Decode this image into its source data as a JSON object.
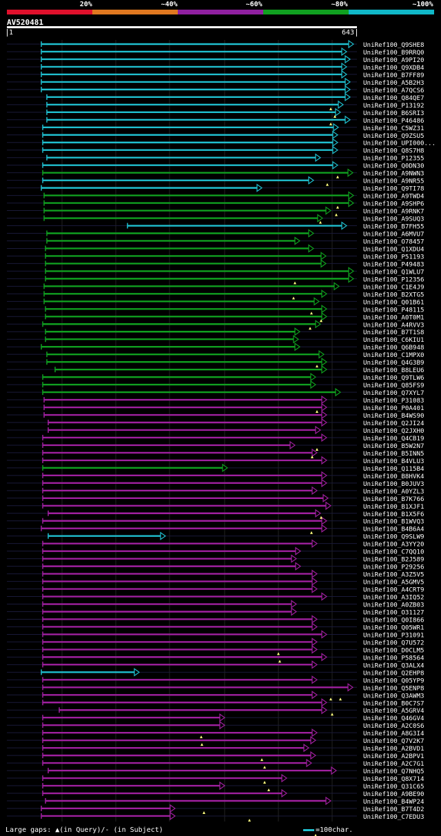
{
  "query": {
    "id": "AV520481",
    "start": "1",
    "end": "643"
  },
  "legend": {
    "labels": [
      "20%",
      "~40%",
      "~60%",
      "~80%",
      "~100%"
    ],
    "colors": [
      "#e0102c",
      "#e07820",
      "#9020a0",
      "#10a020",
      "#10b8c8"
    ]
  },
  "footer": {
    "left": "Large gaps: ▲(in Query)/- (in Subject)",
    "right": "=100char."
  },
  "hits": [
    [
      "UniRef100_Q9SHE8",
      "C",
      60,
      513
    ],
    [
      "UniRef100_B9RRQ0",
      "C",
      60,
      503
    ],
    [
      "UniRef100_A9PI20",
      "C",
      60,
      508
    ],
    [
      "UniRef100_Q9XDB4",
      "C",
      60,
      503
    ],
    [
      "UniRef100_B7FF89",
      "C",
      60,
      503
    ],
    [
      "UniRef100_A5B2H3",
      "C",
      60,
      508
    ],
    [
      "UniRef100_A7QCS6",
      "C",
      60,
      508
    ],
    [
      "UniRef100_Q84QE7",
      "C",
      68,
      508
    ],
    [
      "UniRef100_P13192",
      "C",
      68,
      498
    ],
    [
      "UniRef100_B6SRI3",
      "C",
      68,
      494
    ],
    [
      "UniRef100_P46486",
      "C",
      68,
      508
    ],
    [
      "UniRef100_C5WZ31",
      "C",
      62,
      491
    ],
    [
      "UniRef100_Q9ZSU5",
      "C",
      62,
      490
    ],
    [
      "UniRef100_UPI000...",
      "C",
      62,
      490
    ],
    [
      "UniRef100_Q8S7H8",
      "C",
      62,
      490
    ],
    [
      "UniRef100_P12355",
      "C",
      68,
      465
    ],
    [
      "UniRef100_Q0DN30",
      "C",
      62,
      490
    ],
    [
      "UniRef100_A9NWN3",
      "G",
      62,
      512
    ],
    [
      "UniRef100_A9NR55",
      "C",
      62,
      455
    ],
    [
      "UniRef100_Q9TI78",
      "C",
      60,
      380
    ],
    [
      "UniRef100_A9TWD4",
      "G",
      64,
      513
    ],
    [
      "UniRef100_A9SHP6",
      "G",
      64,
      513
    ],
    [
      "UniRef100_A9RNK7",
      "G",
      64,
      480
    ],
    [
      "UniRef100_A9SUQ3",
      "G",
      64,
      468
    ],
    [
      "UniRef100_B7FH55",
      "C",
      185,
      503
    ],
    [
      "UniRef100_A6MVU7",
      "G",
      68,
      455
    ],
    [
      "UniRef100_O78457",
      "G",
      68,
      435
    ],
    [
      "UniRef100_Q1XDU4",
      "G",
      66,
      455
    ],
    [
      "UniRef100_P51193",
      "G",
      66,
      473
    ],
    [
      "UniRef100_P49483",
      "G",
      66,
      473
    ],
    [
      "UniRef100_Q1WLU7",
      "G",
      66,
      513
    ],
    [
      "UniRef100_P12356",
      "G",
      66,
      513
    ],
    [
      "UniRef100_C1E4J9",
      "G",
      64,
      492
    ],
    [
      "UniRef100_B2XTG5",
      "G",
      64,
      474
    ],
    [
      "UniRef100_Q01B61",
      "G",
      64,
      463
    ],
    [
      "UniRef100_P48115",
      "G",
      66,
      474
    ],
    [
      "UniRef100_A0T0M1",
      "G",
      66,
      474
    ],
    [
      "UniRef100_A4RVV3",
      "G",
      62,
      465
    ],
    [
      "UniRef100_B7T1S8",
      "G",
      66,
      435
    ],
    [
      "UniRef100_C6KIU1",
      "G",
      66,
      433
    ],
    [
      "UniRef100_Q6B948",
      "G",
      60,
      435
    ],
    [
      "UniRef100_C1MPX0",
      "G",
      68,
      470
    ],
    [
      "UniRef100_Q4G3B9",
      "G",
      68,
      474
    ],
    [
      "UniRef100_B8LEU6",
      "G",
      80,
      474
    ],
    [
      "UniRef100_Q9TLW6",
      "G",
      62,
      458
    ],
    [
      "UniRef100_Q85FS9",
      "G",
      62,
      458
    ],
    [
      "UniRef100_Q7XYL7",
      "G",
      62,
      494
    ],
    [
      "UniRef100_P31083",
      "P",
      64,
      474
    ],
    [
      "UniRef100_P0A401",
      "P",
      64,
      474
    ],
    [
      "UniRef100_B4WS90",
      "P",
      64,
      474
    ],
    [
      "UniRef100_Q2JI24",
      "P",
      70,
      474
    ],
    [
      "UniRef100_Q2JXH0",
      "P",
      70,
      465
    ],
    [
      "UniRef100_Q4CB19",
      "P",
      62,
      474
    ],
    [
      "UniRef100_B5W2N7",
      "P",
      62,
      428
    ],
    [
      "UniRef100_B5INN5",
      "P",
      62,
      460
    ],
    [
      "UniRef100_B4VLU3",
      "P",
      62,
      474
    ],
    [
      "UniRef100_Q115B4",
      "G",
      62,
      330
    ],
    [
      "UniRef100_B8HVK4",
      "P",
      62,
      474
    ],
    [
      "UniRef100_B0JUV3",
      "P",
      62,
      474
    ],
    [
      "UniRef100_A0YZL3",
      "P",
      62,
      460
    ],
    [
      "UniRef100_B7K766",
      "P",
      62,
      476
    ],
    [
      "UniRef100_B1XJF1",
      "P",
      62,
      480
    ],
    [
      "UniRef100_B1X5F6",
      "P",
      70,
      465
    ],
    [
      "UniRef100_B1WVQ3",
      "P",
      62,
      474
    ],
    [
      "UniRef100_B4B6A4",
      "P",
      60,
      474
    ],
    [
      "UniRef100_Q9SLW9",
      "C",
      70,
      240
    ],
    [
      "UniRef100_A3YY20",
      "P",
      62,
      460
    ],
    [
      "UniRef100_C7QQ10",
      "P",
      62,
      436
    ],
    [
      "UniRef100_B2J589",
      "P",
      62,
      430
    ],
    [
      "UniRef100_P29256",
      "P",
      62,
      436
    ],
    [
      "UniRef100_A3Z5V5",
      "P",
      62,
      460
    ],
    [
      "UniRef100_A5GMV5",
      "P",
      62,
      460
    ],
    [
      "UniRef100_A4CRT9",
      "P",
      62,
      460
    ],
    [
      "UniRef100_A3IQ52",
      "P",
      62,
      474
    ],
    [
      "UniRef100_A0ZB03",
      "P",
      62,
      430
    ],
    [
      "UniRef100_O31127",
      "P",
      62,
      430
    ],
    [
      "UniRef100_Q0I866",
      "P",
      62,
      460
    ],
    [
      "UniRef100_Q05WR1",
      "P",
      62,
      460
    ],
    [
      "UniRef100_P31091",
      "P",
      62,
      474
    ],
    [
      "UniRef100_Q7U572",
      "P",
      62,
      460
    ],
    [
      "UniRef100_D0CLM5",
      "P",
      62,
      460
    ],
    [
      "UniRef100_P58564",
      "P",
      62,
      474
    ],
    [
      "UniRef100_Q3ALX4",
      "P",
      62,
      460
    ],
    [
      "UniRef100_Q2EHP8",
      "C",
      60,
      202
    ],
    [
      "UniRef100_Q05YP9",
      "P",
      62,
      460
    ],
    [
      "UniRef100_Q5ENP8",
      "P",
      62,
      512
    ],
    [
      "UniRef100_Q3AWM3",
      "P",
      62,
      460
    ],
    [
      "UniRef100_B0C7S7",
      "P",
      62,
      474
    ],
    [
      "UniRef100_A5GRV4",
      "P",
      86,
      474
    ],
    [
      "UniRef100_Q46GV4",
      "P",
      62,
      326
    ],
    [
      "UniRef100_A2C0S6",
      "P",
      62,
      326
    ],
    [
      "UniRef100_A8G3I4",
      "P",
      62,
      460
    ],
    [
      "UniRef100_Q7V2K7",
      "P",
      62,
      458
    ],
    [
      "UniRef100_A2BVD1",
      "P",
      62,
      448
    ],
    [
      "UniRef100_A2BPV1",
      "P",
      62,
      458
    ],
    [
      "UniRef100_A2C7G1",
      "P",
      62,
      452
    ],
    [
      "UniRef100_Q7NHQ5",
      "P",
      70,
      488
    ],
    [
      "UniRef100_Q8X714",
      "P",
      62,
      416
    ],
    [
      "UniRef100_Q31C65",
      "P",
      62,
      326
    ],
    [
      "UniRef100_A9BE90",
      "P",
      62,
      416
    ],
    [
      "UniRef100_B4WP24",
      "P",
      66,
      480
    ],
    [
      "UniRef100_B7T4D2",
      "P",
      60,
      254
    ],
    [
      "UniRef100_C7EDU3",
      "P",
      60,
      254
    ]
  ],
  "markers": [
    [
      8,
      480
    ],
    [
      9,
      486
    ],
    [
      10,
      480
    ],
    [
      17,
      490
    ],
    [
      18,
      475
    ],
    [
      21,
      490
    ],
    [
      22,
      488
    ],
    [
      23,
      465
    ],
    [
      31,
      428
    ],
    [
      33,
      426
    ],
    [
      35,
      452
    ],
    [
      36,
      466
    ],
    [
      37,
      450
    ],
    [
      42,
      460
    ],
    [
      48,
      460
    ],
    [
      53,
      460
    ],
    [
      54,
      453
    ],
    [
      62,
      466
    ],
    [
      64,
      452
    ],
    [
      80,
      404
    ],
    [
      81,
      406
    ],
    [
      86,
      480
    ],
    [
      86,
      494
    ],
    [
      88,
      482
    ],
    [
      91,
      292
    ],
    [
      92,
      293
    ],
    [
      94,
      380
    ],
    [
      95,
      384
    ],
    [
      97,
      384
    ],
    [
      98,
      390
    ],
    [
      101,
      296
    ],
    [
      102,
      362
    ],
    [
      104,
      458
    ]
  ]
}
